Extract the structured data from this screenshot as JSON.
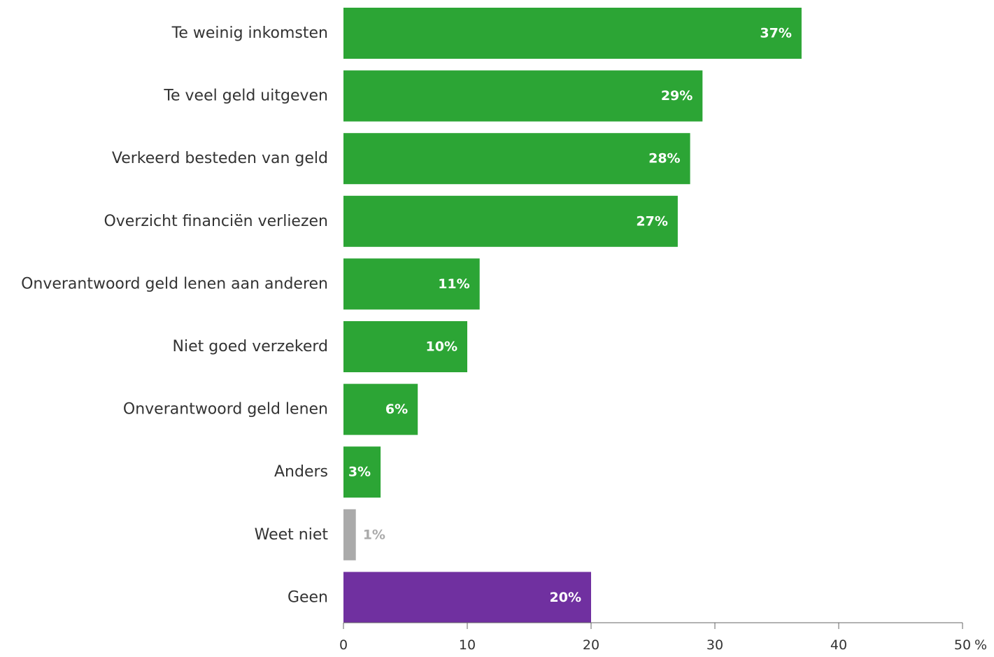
{
  "chart_data": {
    "type": "bar",
    "orientation": "horizontal",
    "categories": [
      "Te weinig inkomsten",
      "Te veel geld uitgeven",
      "Verkeerd besteden van geld",
      "Overzicht financiën verliezen",
      "Onverantwoord geld lenen aan anderen",
      "Niet goed verzekerd",
      "Onverantwoord geld lenen",
      "Anders",
      "Weet niet",
      "Geen"
    ],
    "values": [
      37,
      29,
      28,
      27,
      11,
      10,
      6,
      3,
      1,
      20
    ],
    "value_labels": [
      "37%",
      "29%",
      "28%",
      "27%",
      "11%",
      "10%",
      "6%",
      "3%",
      "1%",
      "20%"
    ],
    "bar_colors": [
      "#2ca535",
      "#2ca535",
      "#2ca535",
      "#2ca535",
      "#2ca535",
      "#2ca535",
      "#2ca535",
      "#2ca535",
      "#aaaaaa",
      "#7030a0"
    ],
    "value_label_colors": [
      "#ffffff",
      "#ffffff",
      "#ffffff",
      "#ffffff",
      "#ffffff",
      "#ffffff",
      "#ffffff",
      "#ffffff",
      "#aaaaaa",
      "#ffffff"
    ],
    "value_label_outside": [
      false,
      false,
      false,
      false,
      false,
      false,
      false,
      false,
      true,
      false
    ],
    "xlim": [
      0,
      50
    ],
    "xticks": [
      0,
      10,
      20,
      30,
      40,
      50
    ],
    "xtick_labels": [
      "0",
      "10",
      "20",
      "30",
      "40",
      "50"
    ],
    "x_unit": "%",
    "title": "",
    "xlabel": "",
    "ylabel": "",
    "grid": false,
    "legend": false,
    "colors": {
      "green": "#2ca535",
      "gray": "#aaaaaa",
      "purple": "#7030a0",
      "text": "#333333",
      "axis": "#666666"
    }
  }
}
